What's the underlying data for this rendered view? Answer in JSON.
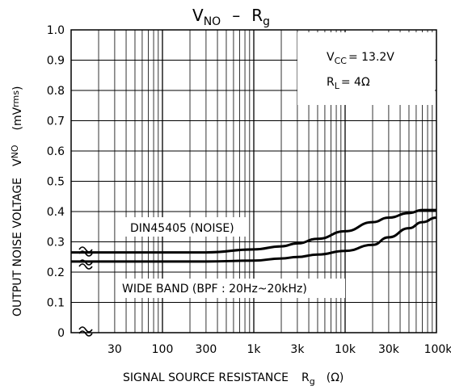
{
  "chart_data": {
    "type": "line",
    "title": {
      "main": "V",
      "main_sub": "NO",
      "sep": "–",
      "var": "R",
      "var_sub": "g"
    },
    "xlabel": {
      "text": "SIGNAL SOURCE RESISTANCE",
      "var": "R",
      "var_sub": "g",
      "unit": "(Ω)"
    },
    "ylabel": {
      "text": "OUTPUT NOISE VOLTAGE",
      "var": "V",
      "var_sub": "NO",
      "unit_open": "(mV",
      "unit_sub": "rms",
      "unit_close": ")"
    },
    "x_scale": "log",
    "xlim": [
      10,
      100000
    ],
    "ylim": [
      0,
      1.0
    ],
    "x_ticks": [
      {
        "value": 30,
        "label": "30"
      },
      {
        "value": 100,
        "label": "100"
      },
      {
        "value": 300,
        "label": "300"
      },
      {
        "value": 1000,
        "label": "1k"
      },
      {
        "value": 3000,
        "label": "3k"
      },
      {
        "value": 10000,
        "label": "10k"
      },
      {
        "value": 30000,
        "label": "30k"
      },
      {
        "value": 100000,
        "label": "100k"
      }
    ],
    "y_ticks": [
      {
        "value": 0,
        "label": "0"
      },
      {
        "value": 0.1,
        "label": "0.1"
      },
      {
        "value": 0.2,
        "label": "0.2"
      },
      {
        "value": 0.3,
        "label": "0.3"
      },
      {
        "value": 0.4,
        "label": "0.4"
      },
      {
        "value": 0.5,
        "label": "0.5"
      },
      {
        "value": 0.6,
        "label": "0.6"
      },
      {
        "value": 0.7,
        "label": "0.7"
      },
      {
        "value": 0.8,
        "label": "0.8"
      },
      {
        "value": 0.9,
        "label": "0.9"
      },
      {
        "value": 1.0,
        "label": "1.0"
      }
    ],
    "grid": true,
    "axis_break": true,
    "series": [
      {
        "name": "DIN45405 (NOISE)",
        "x": [
          10,
          30,
          100,
          300,
          1000,
          2000,
          3000,
          5000,
          10000,
          20000,
          30000,
          50000,
          70000,
          100000
        ],
        "y": [
          0.265,
          0.265,
          0.265,
          0.265,
          0.275,
          0.285,
          0.295,
          0.31,
          0.335,
          0.365,
          0.38,
          0.395,
          0.405,
          0.405
        ]
      },
      {
        "name": "WIDE BAND (BPF : 20Hz~20kHz)",
        "x": [
          10,
          30,
          100,
          300,
          1000,
          2000,
          3000,
          5000,
          10000,
          20000,
          30000,
          50000,
          70000,
          100000
        ],
        "y": [
          0.235,
          0.235,
          0.235,
          0.235,
          0.238,
          0.245,
          0.25,
          0.258,
          0.27,
          0.29,
          0.315,
          0.345,
          0.365,
          0.38
        ]
      }
    ],
    "conditions": {
      "vcc": {
        "var": "V",
        "sub": "CC",
        "text": "= 13.2V"
      },
      "rl": {
        "var": "R",
        "sub": "L",
        "text": "= 4Ω"
      }
    }
  }
}
